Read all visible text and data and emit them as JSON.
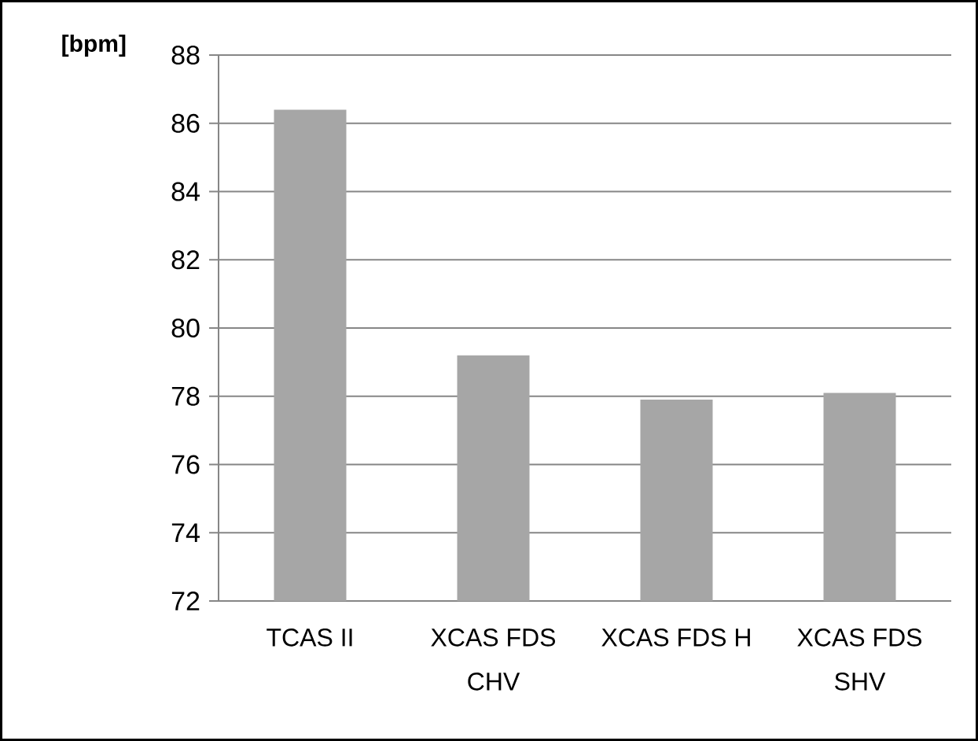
{
  "chart_data": {
    "type": "bar",
    "ylabel": "[bpm]",
    "categories": [
      "TCAS II",
      "XCAS FDS CHV",
      "XCAS FDS H",
      "XCAS FDS SHV"
    ],
    "values": [
      86.4,
      79.2,
      77.9,
      78.1
    ],
    "color": "#a6a6a6",
    "ylim": [
      72,
      88
    ],
    "yticks": [
      72,
      74,
      76,
      78,
      80,
      82,
      84,
      86,
      88
    ],
    "grid": "y"
  }
}
